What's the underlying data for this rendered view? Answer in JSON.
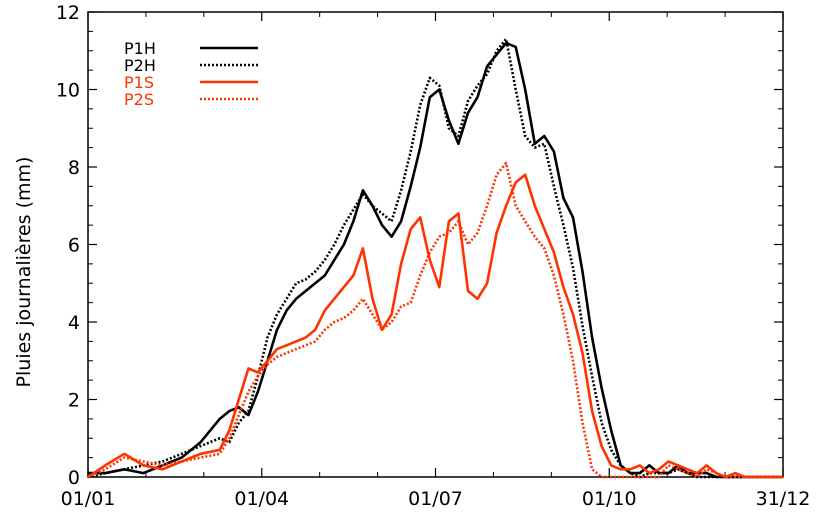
{
  "chart_data": {
    "type": "line",
    "title": "",
    "xlabel": "",
    "ylabel": "Pluies journalières (mm)",
    "x_ticks": [
      "01/01",
      "01/04",
      "01/07",
      "01/10",
      "31/12"
    ],
    "ylim": [
      0,
      12
    ],
    "y_ticks": [
      "0",
      "2",
      "4",
      "6",
      "8",
      "10",
      "12"
    ],
    "x_unit": "day of year",
    "xlim": [
      1,
      365
    ],
    "legend_position": "top-left",
    "colors": {
      "black": "#000000",
      "red": "#ff3300"
    },
    "series": [
      {
        "name": "P1H",
        "color": "#000000",
        "dash": "solid",
        "x": [
          1,
          10,
          20,
          30,
          40,
          50,
          60,
          70,
          75,
          80,
          85,
          90,
          95,
          100,
          105,
          110,
          115,
          120,
          125,
          130,
          135,
          140,
          145,
          150,
          155,
          160,
          165,
          170,
          175,
          180,
          185,
          190,
          195,
          200,
          205,
          210,
          215,
          220,
          225,
          230,
          235,
          240,
          245,
          250,
          255,
          260,
          265,
          270,
          275,
          280,
          285,
          290,
          295,
          300,
          305,
          310,
          315,
          320,
          325,
          330,
          335,
          340,
          345,
          350,
          355,
          360,
          365
        ],
        "y": [
          0.1,
          0.1,
          0.2,
          0.1,
          0.3,
          0.5,
          0.9,
          1.5,
          1.7,
          1.8,
          1.6,
          2.2,
          3.0,
          3.8,
          4.3,
          4.6,
          4.8,
          5.0,
          5.2,
          5.6,
          6.0,
          6.6,
          7.4,
          7.0,
          6.5,
          6.2,
          6.6,
          7.5,
          8.5,
          9.8,
          10.0,
          9.2,
          8.6,
          9.4,
          9.8,
          10.6,
          10.9,
          11.2,
          11.1,
          10.0,
          8.6,
          8.8,
          8.4,
          7.2,
          6.7,
          5.3,
          3.6,
          2.3,
          1.2,
          0.3,
          0.1,
          0.1,
          0.3,
          0.1,
          0.1,
          0.3,
          0.1,
          0.1,
          0.1,
          0.0,
          0.0,
          0.0,
          0.0,
          0.0,
          0.0,
          0.0,
          0.0
        ]
      },
      {
        "name": "P2H",
        "color": "#000000",
        "dash": "dotted",
        "x": [
          1,
          10,
          20,
          30,
          40,
          50,
          60,
          70,
          75,
          80,
          85,
          90,
          95,
          100,
          105,
          110,
          115,
          120,
          125,
          130,
          135,
          140,
          145,
          150,
          155,
          160,
          165,
          170,
          175,
          180,
          185,
          190,
          195,
          200,
          205,
          210,
          215,
          220,
          225,
          230,
          235,
          240,
          245,
          250,
          255,
          260,
          265,
          270,
          275,
          280,
          285,
          290,
          295,
          300,
          305,
          310,
          315,
          320,
          325,
          330,
          335,
          340,
          345,
          350,
          355,
          360,
          365
        ],
        "y": [
          0.0,
          0.1,
          0.2,
          0.3,
          0.4,
          0.6,
          0.8,
          1.0,
          0.9,
          1.4,
          1.7,
          2.6,
          3.6,
          4.2,
          4.6,
          5.0,
          5.1,
          5.3,
          5.6,
          6.0,
          6.5,
          6.9,
          7.3,
          7.0,
          6.8,
          6.6,
          7.4,
          8.4,
          9.6,
          10.3,
          10.1,
          9.0,
          8.8,
          9.7,
          10.1,
          10.4,
          11.0,
          11.3,
          10.0,
          8.8,
          8.5,
          8.6,
          7.5,
          6.5,
          5.4,
          3.9,
          2.6,
          1.4,
          0.7,
          0.3,
          0.1,
          0.0,
          0.1,
          0.1,
          0.1,
          0.2,
          0.1,
          0.0,
          0.0,
          0.0,
          0.0,
          0.0,
          0.0,
          0.0,
          0.0,
          0.0,
          0.0
        ]
      },
      {
        "name": "P1S",
        "color": "#ff3300",
        "dash": "solid",
        "x": [
          1,
          10,
          20,
          30,
          40,
          50,
          60,
          70,
          75,
          80,
          85,
          90,
          95,
          100,
          105,
          110,
          115,
          120,
          125,
          130,
          135,
          140,
          145,
          150,
          155,
          160,
          165,
          170,
          175,
          180,
          185,
          190,
          195,
          200,
          205,
          210,
          215,
          220,
          225,
          230,
          235,
          240,
          245,
          250,
          255,
          260,
          265,
          270,
          275,
          280,
          285,
          290,
          295,
          300,
          305,
          310,
          315,
          320,
          325,
          330,
          335,
          340,
          345,
          350,
          355,
          360,
          365
        ],
        "y": [
          0.0,
          0.3,
          0.6,
          0.3,
          0.2,
          0.4,
          0.6,
          0.7,
          1.2,
          2.0,
          2.8,
          2.7,
          3.0,
          3.3,
          3.4,
          3.5,
          3.6,
          3.8,
          4.3,
          4.6,
          4.9,
          5.2,
          5.9,
          4.6,
          3.8,
          4.2,
          5.5,
          6.4,
          6.7,
          5.6,
          4.9,
          6.6,
          6.8,
          4.8,
          4.6,
          5.0,
          6.3,
          7.0,
          7.6,
          7.8,
          7.0,
          6.4,
          5.8,
          4.9,
          4.2,
          3.2,
          1.7,
          0.8,
          0.3,
          0.2,
          0.2,
          0.3,
          0.1,
          0.2,
          0.4,
          0.3,
          0.2,
          0.1,
          0.3,
          0.1,
          0.0,
          0.1,
          0.0,
          0.0,
          0.0,
          0.0,
          0.0
        ]
      },
      {
        "name": "P2S",
        "color": "#ff3300",
        "dash": "dotted",
        "x": [
          1,
          10,
          20,
          30,
          40,
          50,
          60,
          70,
          75,
          80,
          85,
          90,
          95,
          100,
          105,
          110,
          115,
          120,
          125,
          130,
          135,
          140,
          145,
          150,
          155,
          160,
          165,
          170,
          175,
          180,
          185,
          190,
          195,
          200,
          205,
          210,
          215,
          220,
          225,
          230,
          235,
          240,
          245,
          250,
          255,
          260,
          265,
          270,
          275,
          280,
          285,
          290,
          295,
          300,
          305,
          310,
          315,
          320,
          325,
          330,
          335,
          340,
          345,
          350,
          355,
          360,
          365
        ],
        "y": [
          0.0,
          0.2,
          0.5,
          0.4,
          0.3,
          0.4,
          0.5,
          0.6,
          1.0,
          1.6,
          2.2,
          2.6,
          2.9,
          3.1,
          3.2,
          3.3,
          3.4,
          3.5,
          3.8,
          4.0,
          4.1,
          4.3,
          4.6,
          4.2,
          3.8,
          4.0,
          4.4,
          4.5,
          5.2,
          5.8,
          6.2,
          6.3,
          6.6,
          6.0,
          6.3,
          7.0,
          7.8,
          8.1,
          7.0,
          6.6,
          6.2,
          5.9,
          5.2,
          4.2,
          3.0,
          1.4,
          0.2,
          0.0,
          0.0,
          0.0,
          0.0,
          0.0,
          0.0,
          0.0,
          0.3,
          0.2,
          0.1,
          0.0,
          0.2,
          0.1,
          0.0,
          0.0,
          0.0,
          0.0,
          0.0,
          0.0,
          0.0
        ]
      }
    ]
  }
}
